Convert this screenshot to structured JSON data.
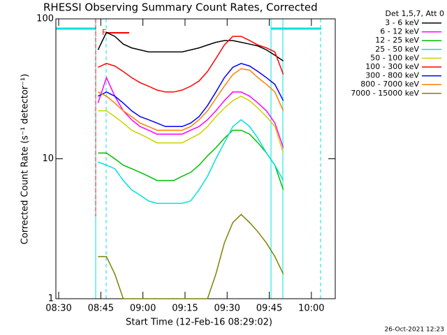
{
  "chart_data": {
    "type": "line",
    "title": "RHESSI Observing Summary Count Rates, Corrected",
    "legend_title": "Det 1,5,7, Att 0",
    "xlabel": "Start Time (12-Feb-16 08:29:02)",
    "ylabel": "Corrected Count Rate (s⁻¹ detector⁻¹)",
    "footer": "26-Oct-2021 12:23",
    "flag": "F",
    "log_y": true,
    "legend_position": "right",
    "xlim": [
      509,
      608.5
    ],
    "ylim": [
      1,
      100
    ],
    "yticks": [
      1,
      10,
      100
    ],
    "xticks": [
      {
        "value": 510,
        "label": "08:30"
      },
      {
        "value": 525,
        "label": "08:45"
      },
      {
        "value": 540,
        "label": "09:00"
      },
      {
        "value": 555,
        "label": "09:15"
      },
      {
        "value": 570,
        "label": "09:30"
      },
      {
        "value": 585,
        "label": "09:45"
      },
      {
        "value": 600,
        "label": "10:00"
      }
    ],
    "x": [
      524,
      527,
      530,
      533,
      536,
      539,
      542,
      545,
      548,
      551,
      554,
      557,
      560,
      563,
      566,
      569,
      572,
      575,
      578,
      581,
      584,
      587,
      590
    ],
    "series": [
      {
        "name": "3 - 6 keV",
        "color": "#000000",
        "values": [
          60,
          80,
          75,
          66,
          62,
          60,
          58,
          58,
          58,
          58,
          58,
          60,
          62,
          65,
          68,
          70,
          70,
          68,
          66,
          64,
          60,
          55,
          50
        ]
      },
      {
        "name": "6 - 12 keV",
        "color": "#ff00ff",
        "values": [
          25,
          38,
          28,
          22,
          19,
          17,
          16,
          15,
          15,
          15,
          15,
          16,
          17,
          19,
          22,
          26,
          30,
          30,
          28,
          25,
          22,
          18,
          12
        ]
      },
      {
        "name": "12 - 25 keV",
        "color": "#00c000",
        "values": [
          11,
          11,
          10,
          9,
          8.5,
          8,
          7.5,
          7,
          7,
          7,
          7.5,
          8,
          9,
          10.5,
          12,
          14,
          16,
          16,
          15,
          13,
          11,
          9,
          6
        ]
      },
      {
        "name": "25 - 50 keV",
        "color": "#00e0e0",
        "values": [
          9.5,
          9,
          8.5,
          7,
          6,
          5.5,
          5,
          4.8,
          4.8,
          4.8,
          4.8,
          5,
          6,
          7.5,
          10,
          13,
          17,
          19,
          17,
          14,
          11,
          9,
          7
        ]
      },
      {
        "name": "50 - 100 keV",
        "color": "#d0d000",
        "values": [
          22,
          22,
          20,
          18,
          16,
          15,
          14,
          13,
          13,
          13,
          13,
          14,
          15,
          17,
          20,
          23,
          26,
          28,
          26,
          23,
          20,
          17,
          11
        ]
      },
      {
        "name": "100 - 300 keV",
        "color": "#ff0000",
        "values": [
          45,
          48,
          46,
          42,
          38,
          35,
          33,
          31,
          30,
          30,
          31,
          33,
          36,
          42,
          52,
          65,
          75,
          75,
          70,
          65,
          62,
          58,
          40
        ]
      },
      {
        "name": "300 - 800 keV",
        "color": "#0000ff",
        "values": [
          28,
          30,
          28,
          25,
          22,
          20,
          19,
          18,
          17,
          17,
          17,
          18,
          20,
          24,
          30,
          38,
          45,
          48,
          46,
          42,
          38,
          34,
          26
        ]
      },
      {
        "name": "800 - 7000 keV",
        "color": "#ff8000",
        "values": [
          30,
          28,
          25,
          22,
          20,
          18,
          17,
          16,
          16,
          16,
          16,
          17,
          19,
          22,
          27,
          33,
          40,
          44,
          43,
          38,
          34,
          30,
          22
        ]
      },
      {
        "name": "7000 - 15000 keV",
        "color": "#808000",
        "values": [
          2,
          2,
          1.5,
          1,
          1,
          1,
          1,
          1,
          1,
          1,
          1,
          1,
          1,
          1,
          1.5,
          2.5,
          3.5,
          4,
          3.5,
          3,
          2.5,
          2,
          1.5
        ]
      }
    ]
  }
}
